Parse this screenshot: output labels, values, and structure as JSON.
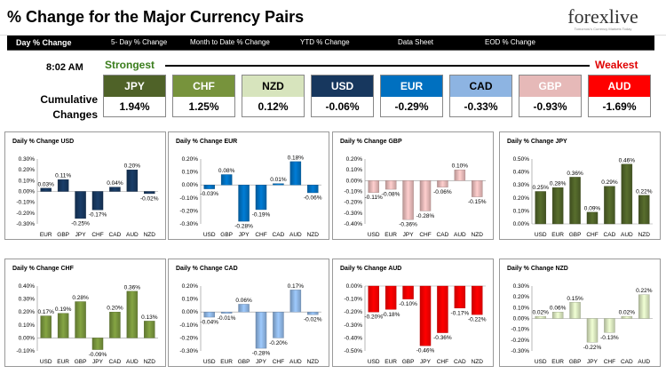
{
  "header": {
    "title": "% Change for the Major Currency Pairs",
    "logo": {
      "brand": "forexlive",
      "tagline": "Tomorrow's Currency Markets Today"
    }
  },
  "tabs": [
    {
      "label": "Day % Change",
      "active": true
    },
    {
      "label": "5- Day % Change",
      "active": false
    },
    {
      "label": "Month to Date % Change",
      "active": false
    },
    {
      "label": "YTD % Change",
      "active": false
    },
    {
      "label": "Data Sheet",
      "active": false
    },
    {
      "label": "EOD % Change",
      "active": false
    }
  ],
  "summary": {
    "time": "8:02 AM",
    "strongest_label": "Strongest",
    "weakest_label": "Weakest",
    "cumulative_label_1": "Cumulative",
    "cumulative_label_2": "Changes",
    "currencies": [
      {
        "name": "JPY",
        "value": "1.94%",
        "color": "#4f6228"
      },
      {
        "name": "CHF",
        "value": "1.25%",
        "color": "#77933c"
      },
      {
        "name": "NZD",
        "value": "0.12%",
        "color": "#d7e4bd",
        "text_color": "#000000"
      },
      {
        "name": "USD",
        "value": "-0.06%",
        "color": "#17375e"
      },
      {
        "name": "EUR",
        "value": "-0.29%",
        "color": "#0070c0"
      },
      {
        "name": "CAD",
        "value": "-0.33%",
        "color": "#8db4e2",
        "text_color": "#000000"
      },
      {
        "name": "GBP",
        "value": "-0.93%",
        "color": "#e6b9b8"
      },
      {
        "name": "AUD",
        "value": "-1.69%",
        "color": "#ff0000"
      }
    ]
  },
  "chart_data": [
    {
      "type": "bar",
      "title": "Daily % Change USD",
      "color": "#17375e",
      "categories": [
        "EUR",
        "GBP",
        "JPY",
        "CHF",
        "CAD",
        "AUD",
        "NZD"
      ],
      "values": [
        0.03,
        0.11,
        -0.25,
        -0.17,
        0.04,
        0.2,
        -0.02
      ],
      "labels": [
        "0.03%",
        "0.11%",
        "-0.25%",
        "-0.17%",
        "0.04%",
        "0.20%",
        "-0.02%"
      ],
      "ylim": [
        -0.3,
        0.3
      ],
      "ticks": [
        "0.30%",
        "0.20%",
        "0.10%",
        "0.00%",
        "-0.10%",
        "-0.20%",
        "-0.30%"
      ]
    },
    {
      "type": "bar",
      "title": "Daily % Change EUR",
      "color": "#0070c0",
      "categories": [
        "USD",
        "GBP",
        "JPY",
        "CHF",
        "CAD",
        "AUD",
        "NZD"
      ],
      "values": [
        -0.03,
        0.08,
        -0.28,
        -0.19,
        0.01,
        0.18,
        -0.06
      ],
      "labels": [
        "-0.03%",
        "0.08%",
        "-0.28%",
        "-0.19%",
        "0.01%",
        "0.18%",
        "-0.06%"
      ],
      "ylim": [
        -0.3,
        0.2
      ],
      "ticks": [
        "0.20%",
        "0.10%",
        "0.00%",
        "-0.10%",
        "-0.20%",
        "-0.30%"
      ]
    },
    {
      "type": "bar",
      "title": "Daily % Change GBP",
      "color": "#e6b9b8",
      "categories": [
        "USD",
        "EUR",
        "JPY",
        "CHF",
        "CAD",
        "AUD",
        "NZD"
      ],
      "values": [
        -0.11,
        -0.08,
        -0.36,
        -0.28,
        -0.06,
        0.1,
        -0.15
      ],
      "labels": [
        "-0.11%",
        "-0.08%",
        "-0.36%",
        "-0.28%",
        "-0.06%",
        "0.10%",
        "-0.15%"
      ],
      "ylim": [
        -0.4,
        0.2
      ],
      "ticks": [
        "0.20%",
        "0.10%",
        "0.00%",
        "-0.10%",
        "-0.20%",
        "-0.30%",
        "-0.40%"
      ]
    },
    {
      "type": "bar",
      "title": "Daily % Change JPY",
      "color": "#4f6228",
      "categories": [
        "USD",
        "EUR",
        "GBP",
        "CHF",
        "CAD",
        "AUD",
        "NZD"
      ],
      "values": [
        0.25,
        0.28,
        0.36,
        0.09,
        0.29,
        0.46,
        0.22
      ],
      "labels": [
        "0.25%",
        "0.28%",
        "0.36%",
        "0.09%",
        "0.29%",
        "0.46%",
        "0.22%"
      ],
      "ylim": [
        0.0,
        0.5
      ],
      "ticks": [
        "0.50%",
        "0.40%",
        "0.30%",
        "0.20%",
        "0.10%",
        "0.00%"
      ]
    },
    {
      "type": "bar",
      "title": "Daily % Change CHF",
      "color": "#77933c",
      "categories": [
        "USD",
        "EUR",
        "GBP",
        "JPY",
        "CAD",
        "AUD",
        "NZD"
      ],
      "values": [
        0.17,
        0.19,
        0.28,
        -0.09,
        0.2,
        0.36,
        0.13
      ],
      "labels": [
        "0.17%",
        "0.19%",
        "0.28%",
        "-0.09%",
        "0.20%",
        "0.36%",
        "0.13%"
      ],
      "ylim": [
        -0.1,
        0.4
      ],
      "ticks": [
        "0.40%",
        "0.30%",
        "0.20%",
        "0.10%",
        "0.00%",
        "-0.10%"
      ]
    },
    {
      "type": "bar",
      "title": "Daily % Change CAD",
      "color": "#8db4e2",
      "categories": [
        "USD",
        "EUR",
        "GBP",
        "JPY",
        "CHF",
        "AUD",
        "NZD"
      ],
      "values": [
        -0.04,
        -0.01,
        0.06,
        -0.28,
        -0.2,
        0.17,
        -0.02
      ],
      "labels": [
        "-0.04%",
        "-0.01%",
        "0.06%",
        "-0.28%",
        "-0.20%",
        "0.17%",
        "-0.02%"
      ],
      "ylim": [
        -0.3,
        0.2
      ],
      "ticks": [
        "0.20%",
        "0.10%",
        "0.00%",
        "-0.10%",
        "-0.20%",
        "-0.30%"
      ]
    },
    {
      "type": "bar",
      "title": "Daily % Change AUD",
      "color": "#ff0000",
      "categories": [
        "USD",
        "EUR",
        "GBP",
        "JPY",
        "CHF",
        "CAD",
        "NZD"
      ],
      "values": [
        -0.2,
        -0.18,
        -0.1,
        -0.46,
        -0.36,
        -0.17,
        -0.22
      ],
      "labels": [
        "-0.20%",
        "-0.18%",
        "-0.10%",
        "-0.46%",
        "-0.36%",
        "-0.17%",
        "-0.22%"
      ],
      "ylim": [
        -0.5,
        0.0
      ],
      "ticks": [
        "0.00%",
        "-0.10%",
        "-0.20%",
        "-0.30%",
        "-0.40%",
        "-0.50%"
      ]
    },
    {
      "type": "bar",
      "title": "Daily % Change NZD",
      "color": "#d7e4bd",
      "categories": [
        "USD",
        "EUR",
        "GBP",
        "JPY",
        "CHF",
        "CAD",
        "AUD"
      ],
      "values": [
        0.02,
        0.06,
        0.15,
        -0.22,
        -0.13,
        0.02,
        0.22
      ],
      "labels": [
        "0.02%",
        "0.06%",
        "0.15%",
        "-0.22%",
        "-0.13%",
        "0.02%",
        "0.22%"
      ],
      "ylim": [
        -0.3,
        0.3
      ],
      "ticks": [
        "0.30%",
        "0.20%",
        "0.10%",
        "0.00%",
        "-0.10%",
        "-0.20%",
        "-0.30%"
      ]
    }
  ]
}
